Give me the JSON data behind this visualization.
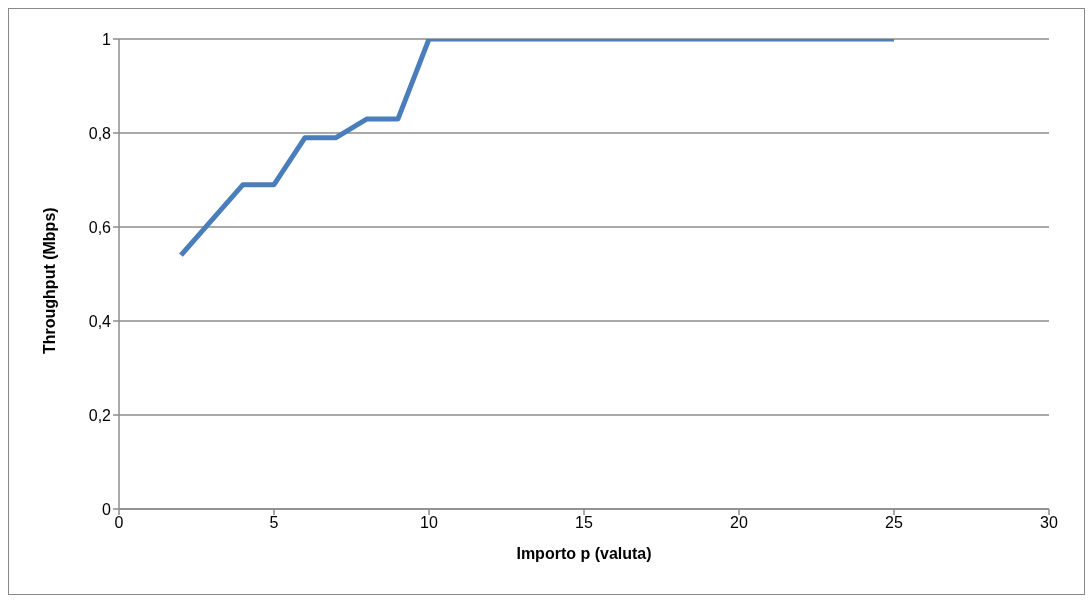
{
  "chart_data": {
    "type": "line",
    "xlabel": "Importo p (valuta)",
    "ylabel": "Throughput (Mbps)",
    "x": [
      2,
      3,
      4,
      5,
      6,
      7,
      8,
      9,
      10,
      11,
      12,
      13,
      14,
      15,
      16,
      17,
      18,
      19,
      20,
      21,
      22,
      23,
      24,
      25
    ],
    "series": [
      {
        "color": "#4a7ebb",
        "values": [
          0.54,
          0.615,
          0.69,
          0.69,
          0.79,
          0.79,
          0.83,
          0.83,
          1,
          1,
          1,
          1,
          1,
          1,
          1,
          1,
          1,
          1,
          1,
          1,
          1,
          1,
          1,
          1
        ]
      }
    ],
    "xlim": [
      0,
      30
    ],
    "xticks": [
      0,
      5,
      10,
      15,
      20,
      25,
      30
    ],
    "ylim": [
      0,
      1
    ],
    "yticks": [
      {
        "value": 0,
        "label": "0"
      },
      {
        "value": 0.2,
        "label": "0,2"
      },
      {
        "value": 0.4,
        "label": "0,4"
      },
      {
        "value": 0.6,
        "label": "0,6"
      },
      {
        "value": 0.8,
        "label": "0,8"
      },
      {
        "value": 1,
        "label": "1"
      }
    ],
    "grid": "y",
    "legend": false,
    "marker": "none",
    "line_style": "solid"
  }
}
